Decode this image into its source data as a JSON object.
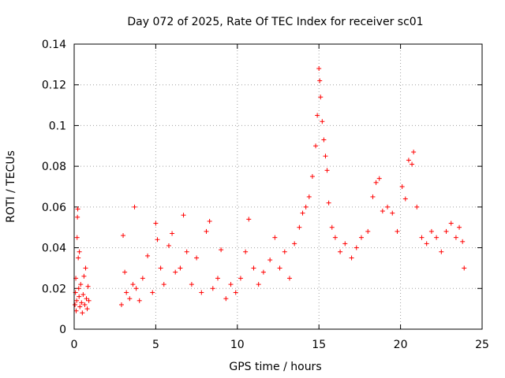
{
  "chart_data": {
    "type": "scatter",
    "title": "Day 072 of 2025, Rate Of TEC Index for receiver sc01",
    "xlabel": "GPS time / hours",
    "ylabel": "ROTI / TECUs",
    "xlim": [
      0,
      25
    ],
    "ylim": [
      0,
      0.14
    ],
    "xticks": [
      0,
      5,
      10,
      15,
      20,
      25
    ],
    "yticks": [
      0,
      0.02,
      0.04,
      0.06,
      0.08,
      0.1,
      0.12,
      0.14
    ],
    "xtick_labels": [
      "0",
      "5",
      "10",
      "15",
      "20",
      "25"
    ],
    "ytick_labels": [
      "0",
      "0.02",
      "0.04",
      "0.06",
      "0.08",
      "0.1",
      "0.12",
      "0.14"
    ],
    "grid": true,
    "marker": "+",
    "color": "#ff0000",
    "series": [
      {
        "points": [
          [
            0.05,
            0.012
          ],
          [
            0.08,
            0.018
          ],
          [
            0.1,
            0.025
          ],
          [
            0.12,
            0.009
          ],
          [
            0.15,
            0.014
          ],
          [
            0.18,
            0.045
          ],
          [
            0.2,
            0.055
          ],
          [
            0.22,
            0.059
          ],
          [
            0.25,
            0.035
          ],
          [
            0.28,
            0.02
          ],
          [
            0.3,
            0.016
          ],
          [
            0.32,
            0.038
          ],
          [
            0.35,
            0.011
          ],
          [
            0.4,
            0.022
          ],
          [
            0.45,
            0.013
          ],
          [
            0.5,
            0.008
          ],
          [
            0.55,
            0.017
          ],
          [
            0.6,
            0.026
          ],
          [
            0.65,
            0.012
          ],
          [
            0.7,
            0.03
          ],
          [
            0.75,
            0.015
          ],
          [
            0.8,
            0.01
          ],
          [
            0.85,
            0.021
          ],
          [
            0.9,
            0.014
          ],
          [
            2.9,
            0.012
          ],
          [
            3.0,
            0.046
          ],
          [
            3.1,
            0.028
          ],
          [
            3.2,
            0.018
          ],
          [
            3.4,
            0.015
          ],
          [
            3.6,
            0.022
          ],
          [
            3.7,
            0.06
          ],
          [
            3.8,
            0.02
          ],
          [
            4.0,
            0.014
          ],
          [
            4.2,
            0.025
          ],
          [
            4.5,
            0.036
          ],
          [
            4.8,
            0.018
          ],
          [
            5.0,
            0.052
          ],
          [
            5.1,
            0.044
          ],
          [
            5.3,
            0.03
          ],
          [
            5.5,
            0.022
          ],
          [
            5.8,
            0.041
          ],
          [
            6.0,
            0.047
          ],
          [
            6.2,
            0.028
          ],
          [
            6.5,
            0.03
          ],
          [
            6.7,
            0.056
          ],
          [
            6.9,
            0.038
          ],
          [
            7.2,
            0.022
          ],
          [
            7.5,
            0.035
          ],
          [
            7.8,
            0.018
          ],
          [
            8.1,
            0.048
          ],
          [
            8.3,
            0.053
          ],
          [
            8.5,
            0.02
          ],
          [
            8.8,
            0.025
          ],
          [
            9.0,
            0.039
          ],
          [
            9.3,
            0.015
          ],
          [
            9.6,
            0.022
          ],
          [
            9.9,
            0.018
          ],
          [
            10.2,
            0.025
          ],
          [
            10.5,
            0.038
          ],
          [
            10.7,
            0.054
          ],
          [
            11.0,
            0.03
          ],
          [
            11.3,
            0.022
          ],
          [
            11.6,
            0.028
          ],
          [
            12.0,
            0.034
          ],
          [
            12.3,
            0.045
          ],
          [
            12.6,
            0.03
          ],
          [
            12.9,
            0.038
          ],
          [
            13.2,
            0.025
          ],
          [
            13.5,
            0.042
          ],
          [
            13.8,
            0.05
          ],
          [
            14.0,
            0.057
          ],
          [
            14.2,
            0.06
          ],
          [
            14.4,
            0.065
          ],
          [
            14.6,
            0.075
          ],
          [
            14.8,
            0.09
          ],
          [
            14.9,
            0.105
          ],
          [
            15.0,
            0.128
          ],
          [
            15.05,
            0.122
          ],
          [
            15.1,
            0.114
          ],
          [
            15.2,
            0.102
          ],
          [
            15.3,
            0.093
          ],
          [
            15.4,
            0.085
          ],
          [
            15.5,
            0.078
          ],
          [
            15.6,
            0.062
          ],
          [
            15.8,
            0.05
          ],
          [
            16.0,
            0.045
          ],
          [
            16.3,
            0.038
          ],
          [
            16.6,
            0.042
          ],
          [
            17.0,
            0.035
          ],
          [
            17.3,
            0.04
          ],
          [
            17.6,
            0.045
          ],
          [
            18.0,
            0.048
          ],
          [
            18.3,
            0.065
          ],
          [
            18.5,
            0.072
          ],
          [
            18.7,
            0.074
          ],
          [
            18.9,
            0.058
          ],
          [
            19.2,
            0.06
          ],
          [
            19.5,
            0.057
          ],
          [
            19.8,
            0.048
          ],
          [
            20.1,
            0.07
          ],
          [
            20.3,
            0.064
          ],
          [
            20.5,
            0.083
          ],
          [
            20.7,
            0.081
          ],
          [
            20.8,
            0.087
          ],
          [
            21.0,
            0.06
          ],
          [
            21.3,
            0.045
          ],
          [
            21.6,
            0.042
          ],
          [
            21.9,
            0.048
          ],
          [
            22.2,
            0.045
          ],
          [
            22.5,
            0.038
          ],
          [
            22.8,
            0.048
          ],
          [
            23.1,
            0.052
          ],
          [
            23.4,
            0.045
          ],
          [
            23.6,
            0.05
          ],
          [
            23.8,
            0.043
          ],
          [
            23.9,
            0.03
          ]
        ]
      }
    ]
  }
}
